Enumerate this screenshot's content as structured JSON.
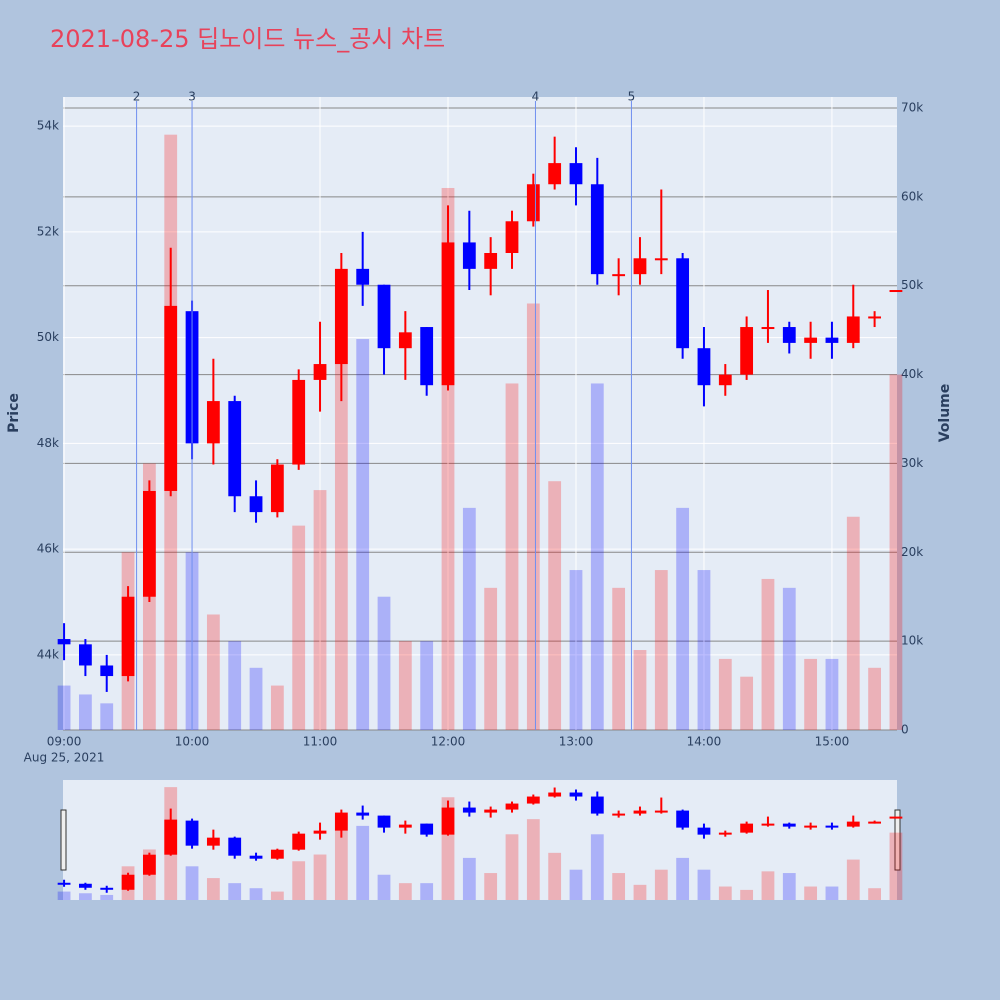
{
  "chart_data": {
    "type": "candlestick",
    "title": "2021-08-25 딥노이드 뉴스_공시 차트",
    "x": [
      "2021-08-25 09:00",
      "2021-08-25 09:10",
      "2021-08-25 09:20",
      "2021-08-25 09:30",
      "2021-08-25 09:40",
      "2021-08-25 09:50",
      "2021-08-25 10:00",
      "2021-08-25 10:10",
      "2021-08-25 10:20",
      "2021-08-25 10:30",
      "2021-08-25 10:40",
      "2021-08-25 10:50",
      "2021-08-25 11:00",
      "2021-08-25 11:10",
      "2021-08-25 11:20",
      "2021-08-25 11:30",
      "2021-08-25 11:40",
      "2021-08-25 11:50",
      "2021-08-25 12:00",
      "2021-08-25 12:10",
      "2021-08-25 12:20",
      "2021-08-25 12:30",
      "2021-08-25 12:40",
      "2021-08-25 12:50",
      "2021-08-25 13:00",
      "2021-08-25 13:10",
      "2021-08-25 13:20",
      "2021-08-25 13:30",
      "2021-08-25 13:40",
      "2021-08-25 13:50",
      "2021-08-25 14:00",
      "2021-08-25 14:10",
      "2021-08-25 14:20",
      "2021-08-25 14:30",
      "2021-08-25 14:40",
      "2021-08-25 14:50",
      "2021-08-25 15:00",
      "2021-08-25 15:10",
      "2021-08-25 15:20",
      "2021-08-25 15:30"
    ],
    "open": [
      44300,
      44200,
      43800,
      43600,
      45100,
      47100,
      50500,
      48000,
      48800,
      47000,
      46700,
      47600,
      49200,
      49500,
      51300,
      51000,
      49800,
      50200,
      49100,
      51800,
      51300,
      51600,
      52200,
      52900,
      53300,
      52900,
      51200,
      51200,
      51500,
      51500,
      49800,
      49100,
      49300,
      50200,
      50200,
      49900,
      50000,
      49900,
      50400,
      50900
    ],
    "high": [
      44600,
      44300,
      44000,
      45300,
      47300,
      51700,
      50700,
      49600,
      48900,
      47300,
      47700,
      49400,
      50300,
      51600,
      52000,
      51000,
      50500,
      50200,
      52500,
      52400,
      51900,
      52400,
      53100,
      53800,
      53600,
      53400,
      51500,
      51900,
      52800,
      51600,
      50200,
      49500,
      50400,
      50900,
      50300,
      50300,
      50300,
      51000,
      50500,
      50900
    ],
    "low": [
      43900,
      43600,
      43300,
      43500,
      45000,
      47000,
      47700,
      47600,
      46700,
      46500,
      46600,
      47500,
      48600,
      48800,
      50600,
      49300,
      49200,
      48900,
      49000,
      50900,
      50800,
      51300,
      52100,
      52800,
      52500,
      51000,
      50800,
      51000,
      51200,
      49600,
      48700,
      48900,
      49200,
      49900,
      49700,
      49600,
      49600,
      49800,
      50200,
      50900
    ],
    "close": [
      44200,
      43800,
      43600,
      45100,
      47100,
      50600,
      48000,
      48800,
      47000,
      46700,
      47600,
      49200,
      49500,
      51300,
      51000,
      49800,
      50100,
      49100,
      51800,
      51300,
      51600,
      52200,
      52900,
      53300,
      52900,
      51200,
      51200,
      51500,
      51500,
      49800,
      49100,
      49300,
      50200,
      50200,
      49900,
      50000,
      49900,
      50400,
      50400,
      50900
    ],
    "volume": [
      5000,
      4000,
      3000,
      20000,
      30000,
      67000,
      20000,
      13000,
      10000,
      7000,
      5000,
      23000,
      27000,
      50000,
      44000,
      15000,
      10000,
      10000,
      61000,
      25000,
      16000,
      39000,
      48000,
      28000,
      18000,
      39000,
      16000,
      9000,
      18000,
      25000,
      18000,
      8000,
      6000,
      17000,
      16000,
      8000,
      8000,
      24000,
      7000,
      40000
    ],
    "up_color": "#ff0000",
    "down_color": "#0000ff",
    "xlim": [
      "2021-08-25 08:59:30",
      "2021-08-25 15:30:30"
    ],
    "xticks": [
      {
        "value": "2021-08-25 09:00",
        "label": "09:00"
      },
      {
        "value": "2021-08-25 10:00",
        "label": "10:00"
      },
      {
        "value": "2021-08-25 11:00",
        "label": "11:00"
      },
      {
        "value": "2021-08-25 12:00",
        "label": "12:00"
      },
      {
        "value": "2021-08-25 13:00",
        "label": "13:00"
      },
      {
        "value": "2021-08-25 14:00",
        "label": "14:00"
      },
      {
        "value": "2021-08-25 15:00",
        "label": "15:00"
      }
    ],
    "x_date_label": "Aug 25, 2021",
    "ylim": [
      42580,
      54550
    ],
    "yticks": [
      {
        "value": 44000,
        "label": "44k"
      },
      {
        "value": 46000,
        "label": "46k"
      },
      {
        "value": 48000,
        "label": "48k"
      },
      {
        "value": 50000,
        "label": "50k"
      },
      {
        "value": 52000,
        "label": "52k"
      },
      {
        "value": 54000,
        "label": "54k"
      }
    ],
    "y2lim": [
      0,
      71240
    ],
    "y2ticks": [
      0,
      {
        "value": 10000,
        "label": "10k"
      },
      {
        "value": 20000,
        "label": "20k"
      },
      {
        "value": 30000,
        "label": "30k"
      },
      {
        "value": 40000,
        "label": "40k"
      },
      {
        "value": 50000,
        "label": "50k"
      },
      {
        "value": 60000,
        "label": "60k"
      },
      {
        "value": 70000,
        "label": "70k"
      }
    ],
    "y_label": "Price",
    "y2_label": "Volume",
    "news": [
      {
        "label": "2",
        "x": "2021-08-25 09:34"
      },
      {
        "label": "3",
        "x": "2021-08-25 10:00"
      },
      {
        "label": "4",
        "x": "2021-08-25 12:41"
      },
      {
        "label": "5",
        "x": "2021-08-25 13:26"
      }
    ]
  }
}
